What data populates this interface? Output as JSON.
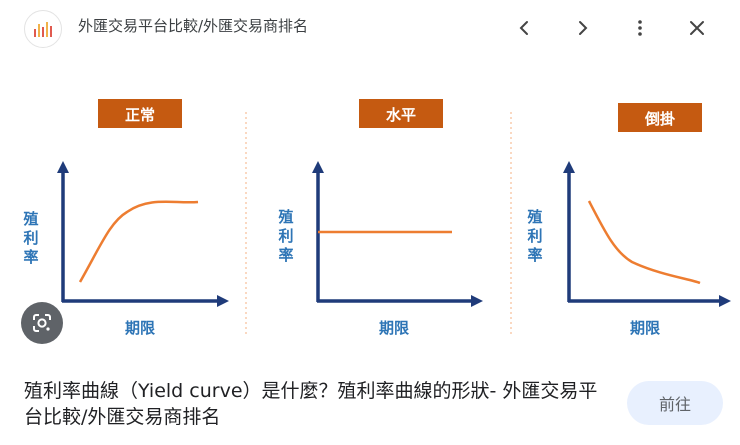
{
  "header": {
    "site_name": "外匯交易平台比較/外匯交易商排名",
    "icons": [
      "site-logo-icon",
      "chevron-left-icon",
      "chevron-right-icon",
      "more-vert-icon",
      "close-icon"
    ]
  },
  "panels": [
    {
      "label": "正常",
      "y_label": [
        "殖",
        "利",
        "率"
      ],
      "x_label": "期限",
      "curve": "normal"
    },
    {
      "label": "水平",
      "y_label": [
        "殖",
        "利",
        "率"
      ],
      "x_label": "期限",
      "curve": "flat"
    },
    {
      "label": "倒掛",
      "y_label": [
        "殖",
        "利",
        "率"
      ],
      "x_label": "期限",
      "curve": "inverted"
    }
  ],
  "caption": "殖利率曲線（Yield curve）是什麼？殖利率曲線的形狀- 外匯交易平台比較/外匯交易商排名",
  "visit_button": "前往",
  "colors": {
    "label_box": "#c55a11",
    "axis": "#1f3b7a",
    "curve": "#ed7d31",
    "axis_text": "#2e75b6",
    "divider": "#f4b183"
  }
}
